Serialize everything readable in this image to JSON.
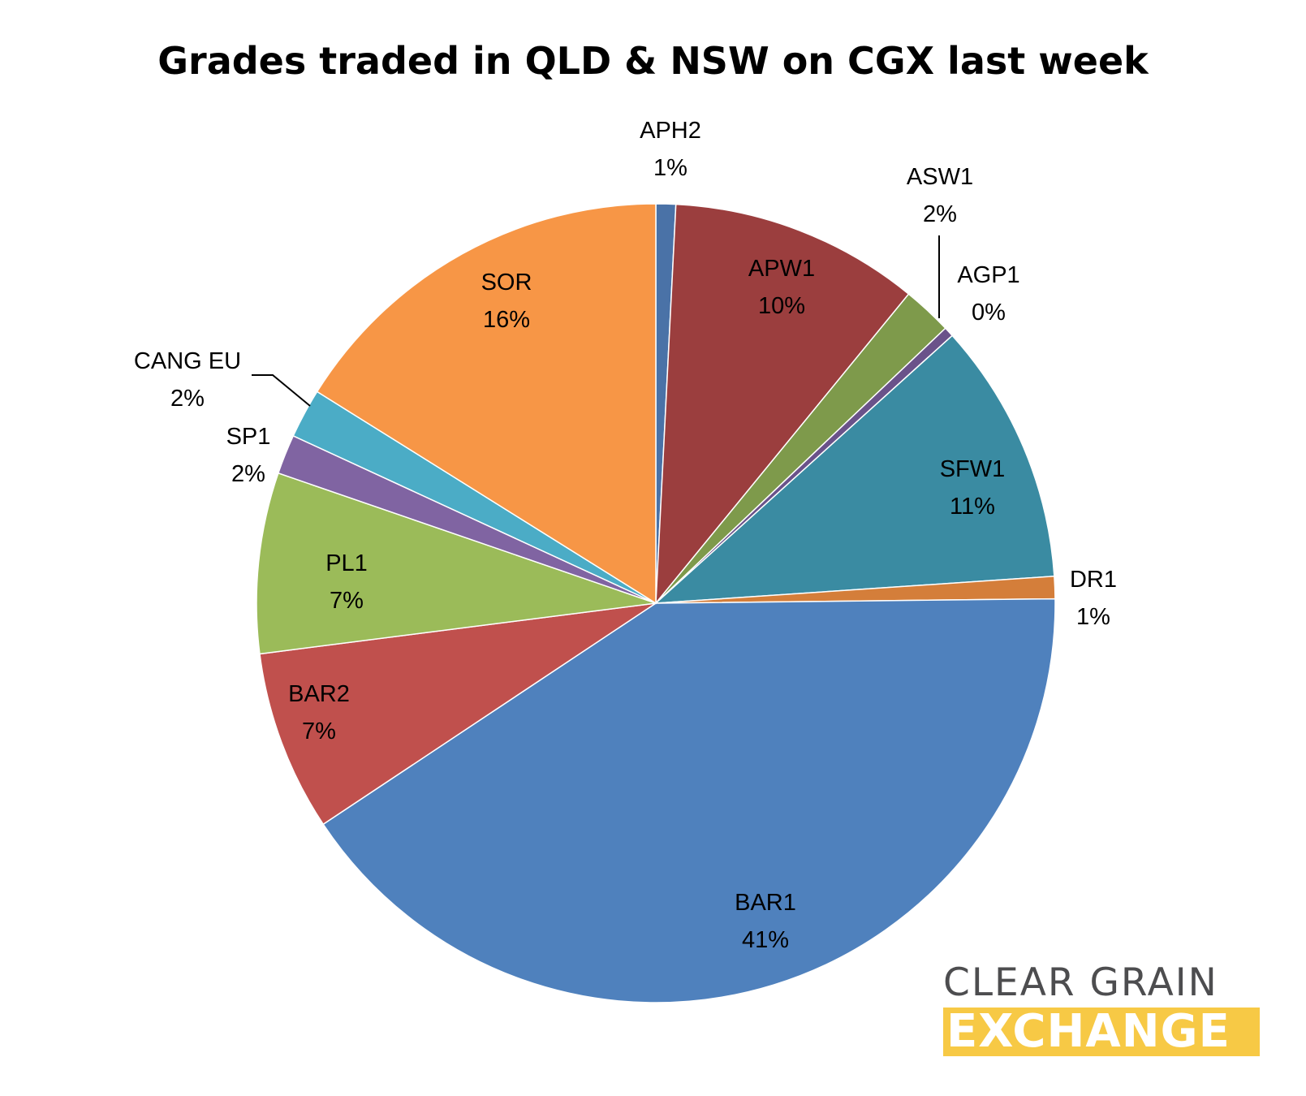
{
  "chart_data": {
    "type": "pie",
    "title": "Grades traded in QLD & NSW on CGX last week",
    "slices": [
      {
        "label": "APH2",
        "pct_label": "1%",
        "value": 0.8,
        "color": "#4a72a7"
      },
      {
        "label": "APW1",
        "pct_label": "10%",
        "value": 10.1,
        "color": "#9b3e3e"
      },
      {
        "label": "ASW1",
        "pct_label": "2%",
        "value": 2.0,
        "color": "#7e9a4b"
      },
      {
        "label": "AGP1",
        "pct_label": "0%",
        "value": 0.4,
        "color": "#6a528a"
      },
      {
        "label": "SFW1",
        "pct_label": "11%",
        "value": 10.6,
        "color": "#3a8ba2"
      },
      {
        "label": "DR1",
        "pct_label": "1%",
        "value": 0.9,
        "color": "#d47e3a"
      },
      {
        "label": "BAR1",
        "pct_label": "41%",
        "value": 40.8,
        "color": "#4f81bd"
      },
      {
        "label": "BAR2",
        "pct_label": "7%",
        "value": 7.3,
        "color": "#c0504d"
      },
      {
        "label": "PL1",
        "pct_label": "7%",
        "value": 7.3,
        "color": "#9bbb59"
      },
      {
        "label": "SP1",
        "pct_label": "2%",
        "value": 1.6,
        "color": "#8064a2"
      },
      {
        "label": "CANG EU",
        "pct_label": "2%",
        "value": 2.0,
        "color": "#4bacc6"
      },
      {
        "label": "SOR",
        "pct_label": "16%",
        "value": 16.1,
        "color": "#f79646"
      }
    ]
  },
  "logo": {
    "line1": "CLEAR GRAIN",
    "line2": "EXCHANGE"
  }
}
